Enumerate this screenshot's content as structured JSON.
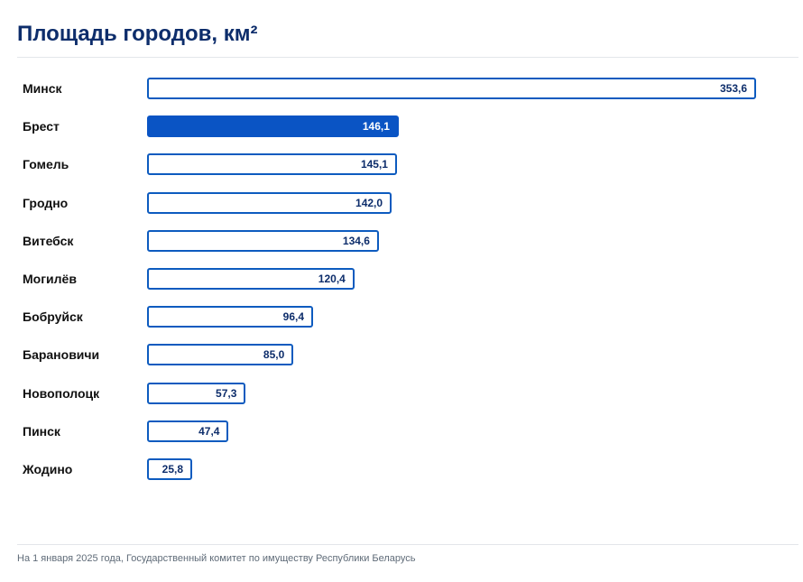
{
  "title": "Площадь городов, км²",
  "footer": "На 1 января 2025 года, Государственный комитет по имуществу Республики Беларусь",
  "colors": {
    "title": "#0d2d6b",
    "bar_border": "#0d5bbf",
    "bar_highlight": "#0a54c4",
    "value_text": "#0d2d6b"
  },
  "chart_data": {
    "type": "bar",
    "orientation": "horizontal",
    "title": "Площадь городов, км²",
    "categories": [
      "Минск",
      "Брест",
      "Гомель",
      "Гродно",
      "Витебск",
      "Могилёв",
      "Бобруйск",
      "Барановичи",
      "Новополоцк",
      "Пинск",
      "Жодино"
    ],
    "values": [
      353.6,
      146.1,
      145.1,
      142.0,
      134.6,
      120.4,
      96.4,
      85.0,
      57.3,
      47.4,
      25.8
    ],
    "value_labels": [
      "353,6",
      "146,1",
      "145,1",
      "142,0",
      "134,6",
      "120,4",
      "96,4",
      "85,0",
      "57,3",
      "47,4",
      "25,8"
    ],
    "highlighted_category": "Брест",
    "xlim": [
      0,
      353.6
    ],
    "grid": false,
    "legend": "none"
  }
}
